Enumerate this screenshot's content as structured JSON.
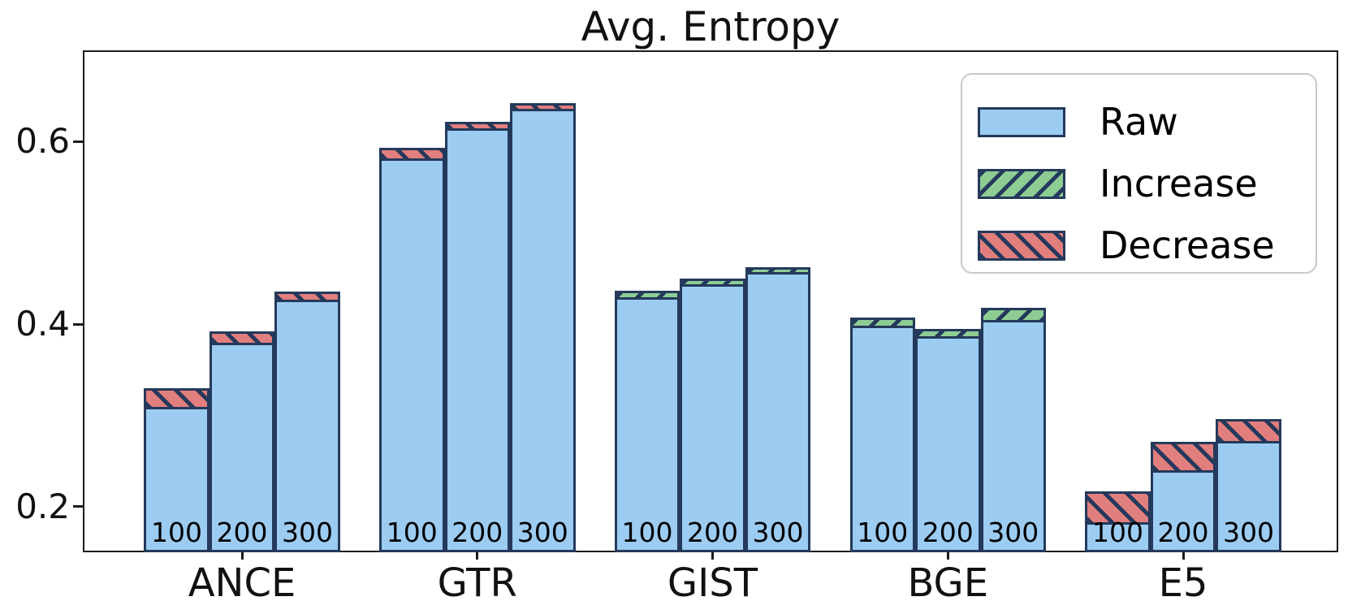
{
  "chart_data": {
    "type": "bar",
    "title": "Avg. Entropy",
    "ylim": [
      0.15,
      0.7
    ],
    "yticks": [
      0.2,
      0.4,
      0.6
    ],
    "grid": false,
    "legend": {
      "position": "upper right",
      "entries": [
        {
          "label": "Raw",
          "style": "solid",
          "color": "#9CCCF2"
        },
        {
          "label": "Increase",
          "style": "hatch-forward-slash",
          "color": "#8DCD94"
        },
        {
          "label": "Decrease",
          "style": "hatch-back-slash",
          "color": "#E17E7E"
        }
      ]
    },
    "categories": [
      "ANCE",
      "GTR",
      "GIST",
      "BGE",
      "E5"
    ],
    "bar_labels": [
      "100",
      "200",
      "300"
    ],
    "groups": [
      {
        "category": "ANCE",
        "bars": [
          {
            "label": "100",
            "raw": 0.33,
            "adjusted": 0.307,
            "change": "decrease"
          },
          {
            "label": "200",
            "raw": 0.392,
            "adjusted": 0.377,
            "change": "decrease"
          },
          {
            "label": "300",
            "raw": 0.436,
            "adjusted": 0.424,
            "change": "decrease"
          }
        ]
      },
      {
        "category": "GTR",
        "bars": [
          {
            "label": "100",
            "raw": 0.593,
            "adjusted": 0.579,
            "change": "decrease"
          },
          {
            "label": "200",
            "raw": 0.622,
            "adjusted": 0.612,
            "change": "decrease"
          },
          {
            "label": "300",
            "raw": 0.642,
            "adjusted": 0.633,
            "change": "decrease"
          }
        ]
      },
      {
        "category": "GIST",
        "bars": [
          {
            "label": "100",
            "raw": 0.427,
            "adjusted": 0.437,
            "change": "increase"
          },
          {
            "label": "200",
            "raw": 0.441,
            "adjusted": 0.45,
            "change": "increase"
          },
          {
            "label": "300",
            "raw": 0.454,
            "adjusted": 0.462,
            "change": "increase"
          }
        ]
      },
      {
        "category": "BGE",
        "bars": [
          {
            "label": "100",
            "raw": 0.396,
            "adjusted": 0.407,
            "change": "increase"
          },
          {
            "label": "200",
            "raw": 0.384,
            "adjusted": 0.395,
            "change": "increase"
          },
          {
            "label": "300",
            "raw": 0.402,
            "adjusted": 0.418,
            "change": "increase"
          }
        ]
      },
      {
        "category": "E5",
        "bars": [
          {
            "label": "100",
            "raw": 0.217,
            "adjusted": 0.18,
            "change": "decrease"
          },
          {
            "label": "200",
            "raw": 0.271,
            "adjusted": 0.237,
            "change": "decrease"
          },
          {
            "label": "300",
            "raw": 0.296,
            "adjusted": 0.269,
            "change": "decrease"
          }
        ]
      }
    ],
    "colors": {
      "raw_fill": "#9CCCF2",
      "increase_fill": "#8DCD94",
      "decrease_fill": "#E17E7E",
      "edge": "#24395B"
    }
  }
}
